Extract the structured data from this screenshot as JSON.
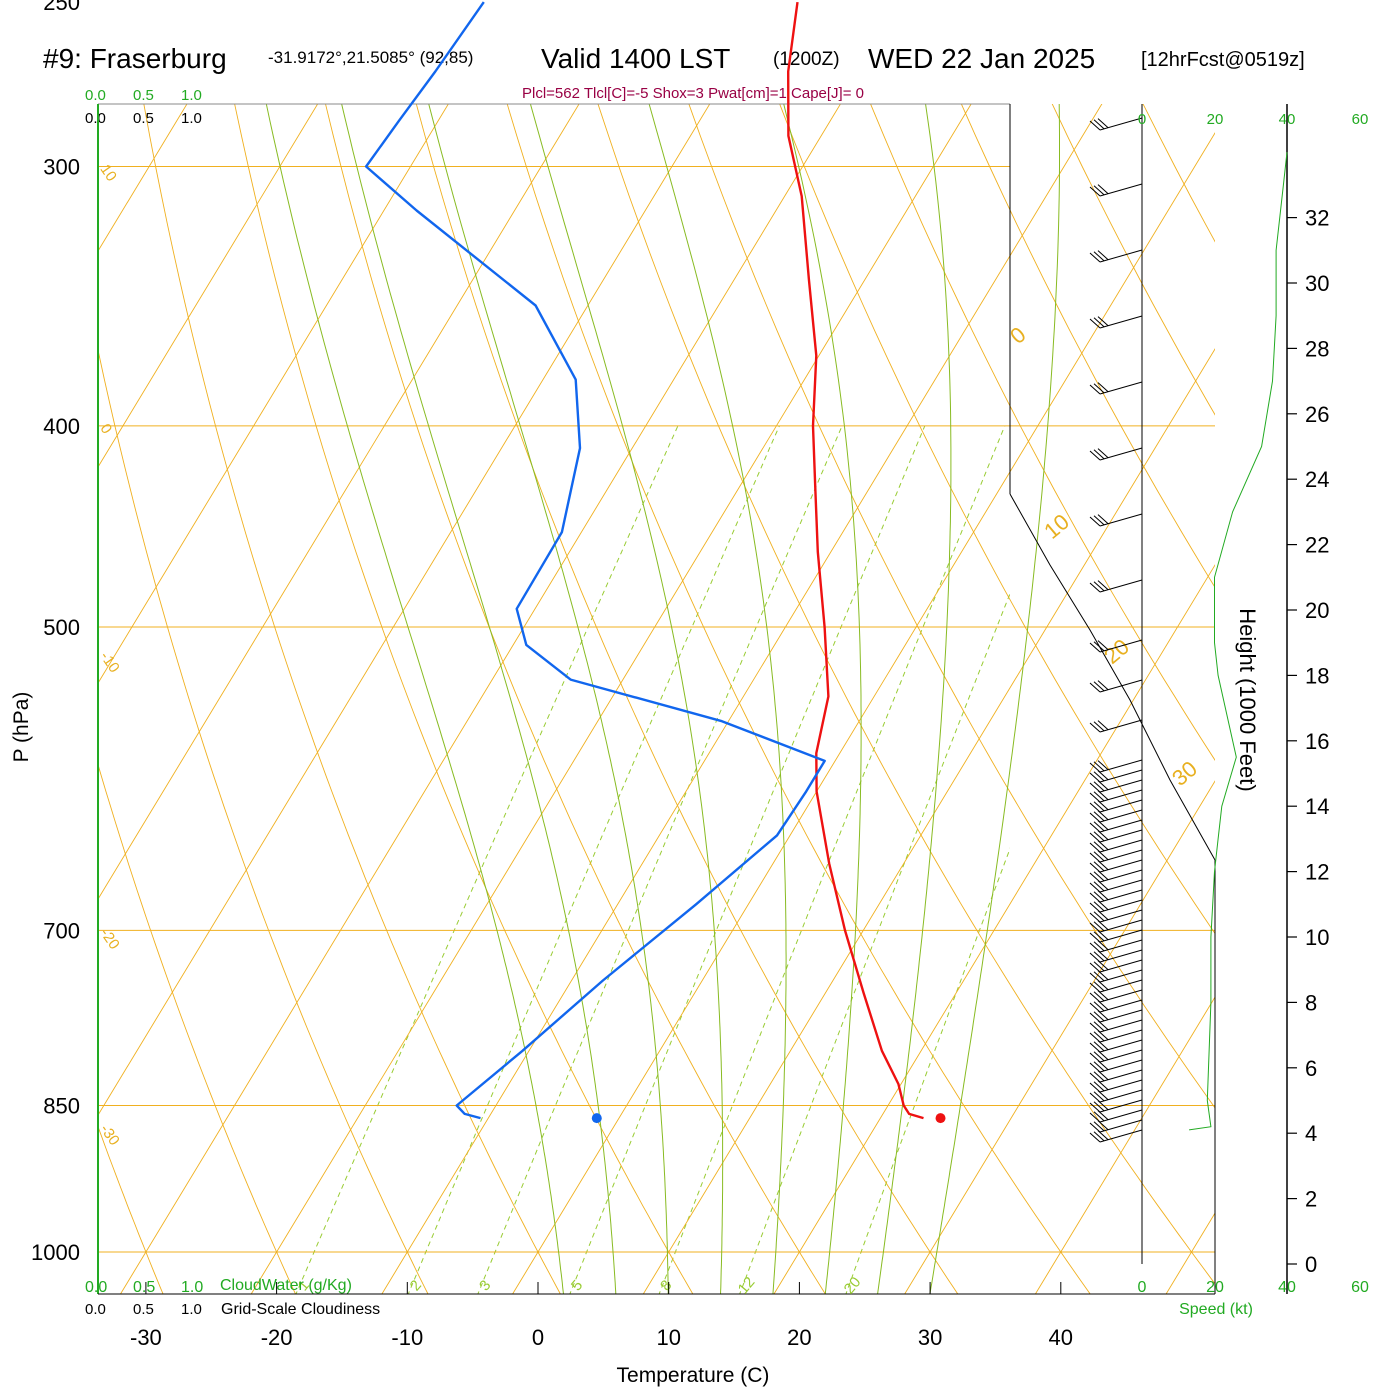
{
  "header": {
    "title_prefix": "#9: Fraserburg",
    "coords": "-31.9172°,21.5085° (92,85)",
    "valid_label": "Valid 1400 LST",
    "zulu": "(1200Z)",
    "date": "WED 22 Jan 2025",
    "forecast": "[12hrFcst@0519z]"
  },
  "stats_line": "Plcl=562 Tlcl[C]=-5 Shox=3 Pwat[cm]=1 Cape[J]= 0",
  "scales": {
    "top_cloudwater_ticks": [
      "0.0",
      "0.5",
      "1.0"
    ],
    "top_cloudiness_ticks": [
      "0.0",
      "0.5",
      "1.0"
    ],
    "bottom_cloudwater_ticks": [
      "0.0",
      "0.5",
      "1.0"
    ],
    "bottom_cloudwater_label": "CloudWater (g/Kg)",
    "bottom_cloudiness_ticks": [
      "0.0",
      "0.5",
      "1.0"
    ],
    "bottom_cloudiness_label": "Grid-Scale Cloudiness",
    "speed_ticks": [
      "0",
      "20",
      "40",
      "60"
    ],
    "speed_label": "Speed (kt)"
  },
  "colors": {
    "temperature": "#ee1111",
    "dewpoint": "#1166ee",
    "isotherm": "#f0b020",
    "dry_adiabat": "#f0b020",
    "moist_adiabat": "#88bb22",
    "mixing_ratio": "#99cc33",
    "speed_profile": "#22aa22",
    "stats": "#990044"
  },
  "chart_data": {
    "type": "line",
    "chart_kind": "skew-T log-P sounding",
    "xlabel": "Temperature (C)",
    "ylabel": "P (hPa)",
    "ylabel_right": "Height (1000 Feet)",
    "x_ticks": [
      -30,
      -20,
      -10,
      0,
      10,
      20,
      30,
      40
    ],
    "p_ticks": [
      250,
      300,
      400,
      500,
      700,
      850,
      1000
    ],
    "height_ticks": [
      0,
      2,
      4,
      6,
      8,
      10,
      12,
      14,
      16,
      18,
      20,
      22,
      24,
      26,
      28,
      30,
      32
    ],
    "p_range": [
      250,
      1050
    ],
    "x_range_at_1000hPa": [
      -37,
      36
    ],
    "mixing_ratio_labels": [
      1,
      2,
      3,
      5,
      8,
      12,
      20
    ],
    "dry_adiabat_labels": [
      10,
      0,
      -10,
      -20,
      -30
    ],
    "isotherm_labels_right": [
      0,
      10,
      20,
      30
    ],
    "series": [
      {
        "name": "temperature",
        "points": [
          {
            "p": 250,
            "t": -38.0
          },
          {
            "p": 270,
            "t": -35.5
          },
          {
            "p": 290,
            "t": -32.5
          },
          {
            "p": 310,
            "t": -28.7
          },
          {
            "p": 340,
            "t": -24.3
          },
          {
            "p": 370,
            "t": -20.2
          },
          {
            "p": 400,
            "t": -17.2
          },
          {
            "p": 430,
            "t": -14.0
          },
          {
            "p": 460,
            "t": -11.0
          },
          {
            "p": 500,
            "t": -7.0
          },
          {
            "p": 540,
            "t": -3.5
          },
          {
            "p": 575,
            "t": -1.8
          },
          {
            "p": 600,
            "t": 0.0
          },
          {
            "p": 650,
            "t": 4.3
          },
          {
            "p": 700,
            "t": 8.6
          },
          {
            "p": 750,
            "t": 12.9
          },
          {
            "p": 800,
            "t": 17.0
          },
          {
            "p": 830,
            "t": 19.8
          },
          {
            "p": 850,
            "t": 21.2
          },
          {
            "p": 858,
            "t": 22.0
          },
          {
            "p": 862,
            "t": 23.3
          }
        ]
      },
      {
        "name": "dewpoint",
        "points": [
          {
            "p": 250,
            "t": -62.0
          },
          {
            "p": 270,
            "t": -62.5
          },
          {
            "p": 285,
            "t": -63.0
          },
          {
            "p": 300,
            "t": -63.4
          },
          {
            "p": 315,
            "t": -57.5
          },
          {
            "p": 350,
            "t": -44.0
          },
          {
            "p": 380,
            "t": -37.5
          },
          {
            "p": 410,
            "t": -34.0
          },
          {
            "p": 450,
            "t": -31.5
          },
          {
            "p": 490,
            "t": -31.4
          },
          {
            "p": 510,
            "t": -29.0
          },
          {
            "p": 530,
            "t": -24.0
          },
          {
            "p": 555,
            "t": -10.5
          },
          {
            "p": 580,
            "t": -0.8
          },
          {
            "p": 600,
            "t": -0.8
          },
          {
            "p": 630,
            "t": -1.0
          },
          {
            "p": 680,
            "t": -4.0
          },
          {
            "p": 740,
            "t": -7.6
          },
          {
            "p": 800,
            "t": -10.5
          },
          {
            "p": 850,
            "t": -13.0
          },
          {
            "p": 858,
            "t": -12.0
          },
          {
            "p": 862,
            "t": -10.6
          }
        ]
      }
    ],
    "surface_markers": [
      {
        "name": "surface_temperature",
        "p": 862,
        "t": 24.6
      },
      {
        "name": "surface_dewpoint",
        "p": 862,
        "t": -1.7
      }
    ],
    "wind_speed_profile_kt": [
      {
        "h": 4.1,
        "v": 13
      },
      {
        "h": 4.2,
        "v": 19
      },
      {
        "h": 5,
        "v": 18
      },
      {
        "h": 8,
        "v": 19
      },
      {
        "h": 10,
        "v": 19
      },
      {
        "h": 12,
        "v": 20
      },
      {
        "h": 13,
        "v": 21
      },
      {
        "h": 14,
        "v": 22
      },
      {
        "h": 15.5,
        "v": 26
      },
      {
        "h": 16.5,
        "v": 24
      },
      {
        "h": 18,
        "v": 21
      },
      {
        "h": 19,
        "v": 20
      },
      {
        "h": 21,
        "v": 20
      },
      {
        "h": 23,
        "v": 25
      },
      {
        "h": 25,
        "v": 33
      },
      {
        "h": 27,
        "v": 36
      },
      {
        "h": 29,
        "v": 37
      },
      {
        "h": 31,
        "v": 37
      },
      {
        "h": 33,
        "v": 39
      },
      {
        "h": 34,
        "v": 40
      }
    ]
  }
}
